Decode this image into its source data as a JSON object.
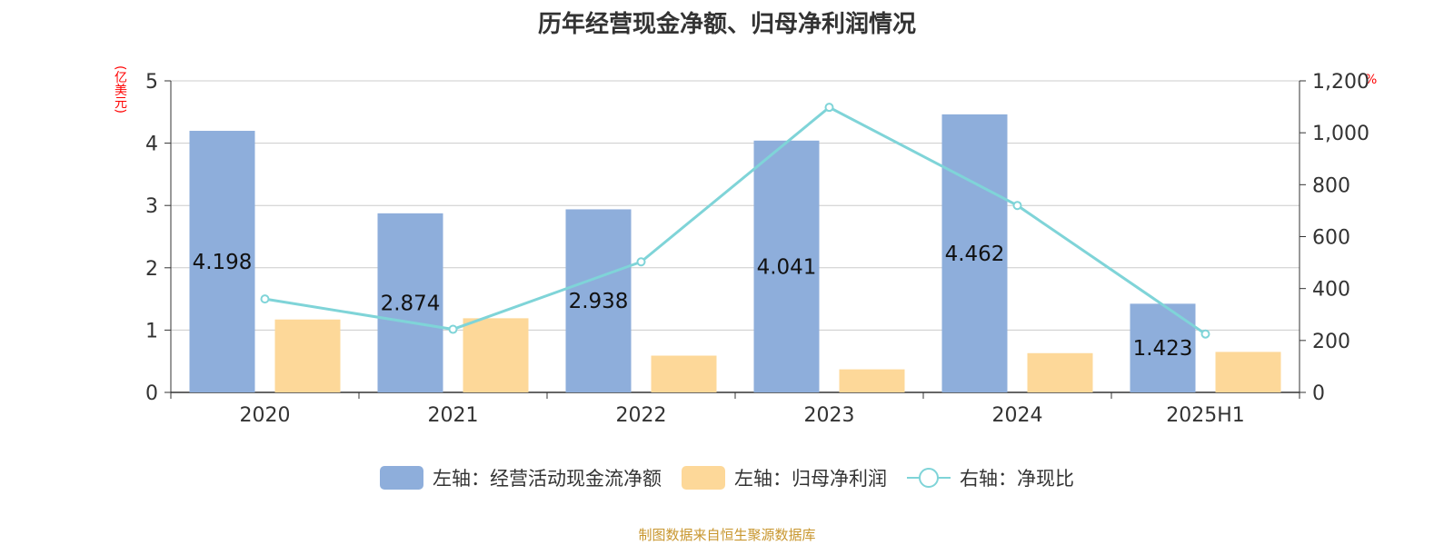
{
  "chart_data": {
    "type": "bar",
    "title": "历年经营现金净额、归母净利润情况",
    "categories": [
      "2020",
      "2021",
      "2022",
      "2023",
      "2024",
      "2025H1"
    ],
    "y_left": {
      "label": "(亿美元)",
      "min": 0,
      "max": 5,
      "ticks": [
        "0",
        "1",
        "2",
        "3",
        "4",
        "5"
      ]
    },
    "y_right": {
      "label": "%",
      "min": 0,
      "max": 1200,
      "ticks": [
        "0",
        "200",
        "400",
        "600",
        "800",
        "1,000",
        "1,200"
      ]
    },
    "grid": true,
    "legend_position": "bottom",
    "series": [
      {
        "name": "左轴：经营活动现金流净额",
        "type": "bar",
        "axis": "left",
        "color": "#8eaedb",
        "values": [
          4.198,
          2.874,
          2.938,
          4.041,
          4.462,
          1.423
        ],
        "labels": [
          "4.198",
          "2.874",
          "2.938",
          "4.041",
          "4.462",
          "1.423"
        ]
      },
      {
        "name": "左轴：归母净利润",
        "type": "bar",
        "axis": "left",
        "color": "#fdd899",
        "values": [
          1.17,
          1.19,
          0.59,
          0.37,
          0.63,
          0.65
        ]
      },
      {
        "name": "右轴：净现比",
        "type": "line",
        "axis": "right",
        "color": "#7fd4d8",
        "values": [
          360,
          243,
          503,
          1098,
          720,
          225
        ]
      }
    ]
  },
  "source_note": "制图数据来自恒生聚源数据库"
}
